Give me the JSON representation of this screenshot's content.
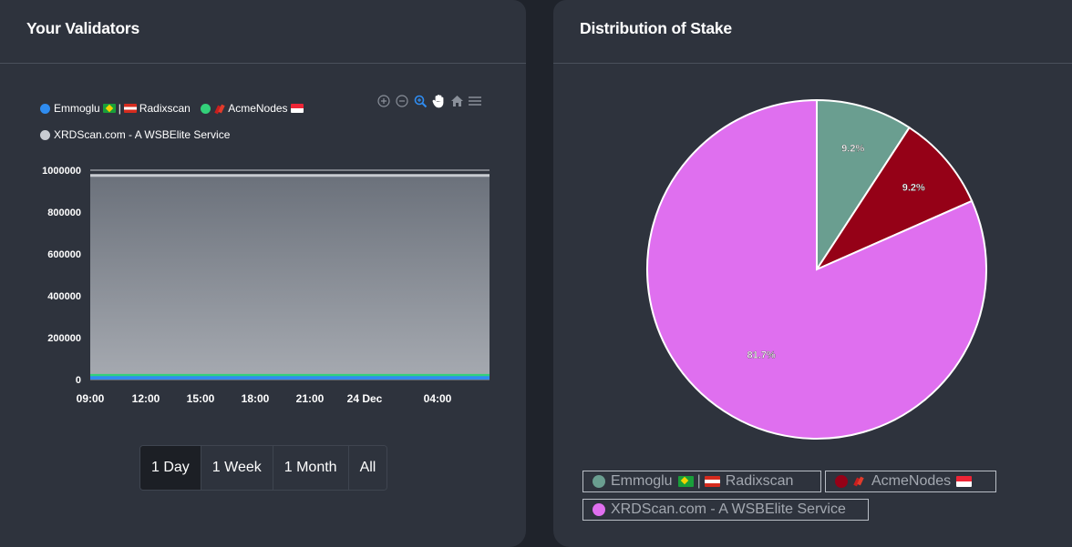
{
  "left_card": {
    "title": "Your Validators",
    "legend": [
      {
        "label_a": "Emmoglu",
        "label_b": "|",
        "label_c": "Radixscan",
        "color": "#2f8cf0"
      },
      {
        "label_a": "AcmeNodes",
        "color": "#33d17a"
      },
      {
        "label_a": "XRDScan.com - A WSBElite Service",
        "color": "#c9ccd2"
      }
    ],
    "toolbar_icons": [
      "zoom-in-icon",
      "zoom-out-icon",
      "selection-zoom-icon",
      "pan-icon",
      "home-icon",
      "menu-icon"
    ],
    "ranges": [
      "1 Day",
      "1 Week",
      "1 Month",
      "All"
    ],
    "active_range": "1 Day"
  },
  "right_card": {
    "title": "Distribution of Stake",
    "legend": [
      {
        "label_a": "Emmoglu",
        "label_b": "|",
        "label_c": "Radixscan",
        "color": "#6a9e90"
      },
      {
        "label_a": "AcmeNodes",
        "color": "#950117"
      },
      {
        "label_a": "XRDScan.com - A WSBElite Service",
        "color": "#df6fef"
      }
    ]
  },
  "chart_data": [
    {
      "type": "area",
      "ylim": [
        0,
        1000000
      ],
      "y_ticks": [
        "0",
        "200000",
        "400000",
        "600000",
        "800000",
        "1000000"
      ],
      "x_ticks": [
        "09:00",
        "12:00",
        "15:00",
        "18:00",
        "21:00",
        "24 Dec",
        "04:00"
      ],
      "series": [
        {
          "name": "Emmoglu | Radixscan",
          "color": "#2f8cf0",
          "values": [
            10000,
            10000,
            10000,
            10000,
            10000,
            10000,
            10000
          ]
        },
        {
          "name": "AcmeNodes",
          "color": "#33d17a",
          "values": [
            10000,
            10000,
            10000,
            10000,
            10000,
            10000,
            10000
          ]
        },
        {
          "name": "XRDScan.com - A WSBElite Service",
          "color": "#c9ccd2",
          "values": [
            955000,
            955000,
            955000,
            955000,
            955000,
            955000,
            955000
          ]
        }
      ]
    },
    {
      "type": "pie",
      "slices": [
        {
          "name": "Emmoglu | Radixscan",
          "value": 9.2,
          "label": "9.2%",
          "color": "#6a9e90"
        },
        {
          "name": "AcmeNodes",
          "value": 9.2,
          "label": "9.2%",
          "color": "#950117"
        },
        {
          "name": "XRDScan.com - A WSBElite Service",
          "value": 81.7,
          "label": "81.7%",
          "color": "#df6fef"
        }
      ]
    }
  ]
}
